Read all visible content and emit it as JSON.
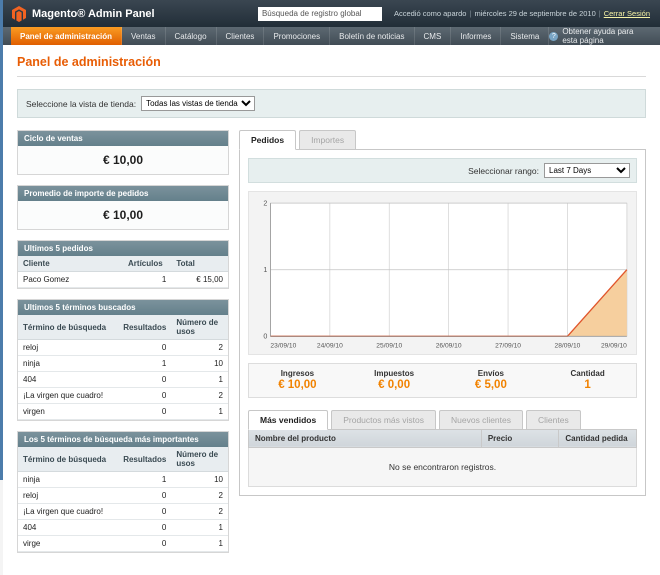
{
  "header": {
    "logo_text": "Magento® Admin Panel",
    "search_value": "Búsqueda de registro global",
    "logged_in_as": "Accedió como apardo",
    "date": "miércoles 29 de septiembre de 2010",
    "logout_label": "Cerrar Sesión"
  },
  "nav": {
    "items": [
      {
        "label": "Panel de administración",
        "active": true
      },
      {
        "label": "Ventas",
        "active": false
      },
      {
        "label": "Catálogo",
        "active": false
      },
      {
        "label": "Clientes",
        "active": false
      },
      {
        "label": "Promociones",
        "active": false
      },
      {
        "label": "Boletín de noticias",
        "active": false
      },
      {
        "label": "CMS",
        "active": false
      },
      {
        "label": "Informes",
        "active": false
      },
      {
        "label": "Sistema",
        "active": false
      }
    ],
    "help_label": "Obtener ayuda para esta página"
  },
  "page": {
    "title": "Panel de administración",
    "store_view_label": "Seleccione la vista de tienda:",
    "store_view_value": "Todas las vistas de tienda"
  },
  "sidebar": {
    "lifetime_sales": {
      "title": "Ciclo de ventas",
      "value": "€ 10,00"
    },
    "average_order": {
      "title": "Promedio de importe de pedidos",
      "value": "€ 10,00"
    },
    "last_orders": {
      "title": "Ultimos 5 pedidos",
      "columns": [
        "Cliente",
        "Artículos",
        "Total"
      ],
      "rows": [
        [
          "Paco Gomez",
          "1",
          "€ 15,00"
        ]
      ]
    },
    "last_search_terms": {
      "title": "Ultimos 5 términos buscados",
      "columns": [
        "Término de búsqueda",
        "Resultados",
        "Número de usos"
      ],
      "rows": [
        [
          "reloj",
          "0",
          "2"
        ],
        [
          "ninja",
          "1",
          "10"
        ],
        [
          "404",
          "0",
          "1"
        ],
        [
          "¡La virgen que cuadro!",
          "0",
          "2"
        ],
        [
          "virgen",
          "0",
          "1"
        ]
      ]
    },
    "top_search_terms": {
      "title": "Los 5 términos de búsqueda más importantes",
      "columns": [
        "Término de búsqueda",
        "Resultados",
        "Número de usos"
      ],
      "rows": [
        [
          "ninja",
          "1",
          "10"
        ],
        [
          "reloj",
          "0",
          "2"
        ],
        [
          "¡La virgen que cuadro!",
          "0",
          "2"
        ],
        [
          "404",
          "0",
          "1"
        ],
        [
          "virge",
          "0",
          "1"
        ]
      ]
    }
  },
  "main": {
    "tabs": [
      {
        "label": "Pedidos",
        "active": true
      },
      {
        "label": "Importes",
        "active": false
      }
    ],
    "range_label": "Seleccionar rango:",
    "range_value": "Last 7 Days",
    "chart_data": {
      "type": "area",
      "x": [
        "23/09/10",
        "24/09/10",
        "25/09/10",
        "26/09/10",
        "27/09/10",
        "28/09/10",
        "29/09/10"
      ],
      "values": [
        0,
        0,
        0,
        0,
        0,
        0,
        1
      ],
      "yticks": [
        0,
        1,
        2
      ],
      "ylim": [
        0,
        2
      ],
      "line_color": "#e0562c",
      "fill_color": "#f6cf9e",
      "grid": true
    },
    "totals": [
      {
        "label": "Ingresos",
        "value": "€ 10,00"
      },
      {
        "label": "Impuestos",
        "value": "€ 0,00"
      },
      {
        "label": "Envíos",
        "value": "€ 5,00"
      },
      {
        "label": "Cantidad",
        "value": "1"
      }
    ],
    "bottom_tabs": [
      {
        "label": "Más vendidos",
        "active": true
      },
      {
        "label": "Productos más vistos",
        "active": false
      },
      {
        "label": "Nuevos clientes",
        "active": false
      },
      {
        "label": "Clientes",
        "active": false
      }
    ],
    "grid": {
      "columns": [
        "Nombre del producto",
        "Precio",
        "Cantidad pedida"
      ],
      "rows": [],
      "empty_text": "No se encontraron registros."
    }
  }
}
